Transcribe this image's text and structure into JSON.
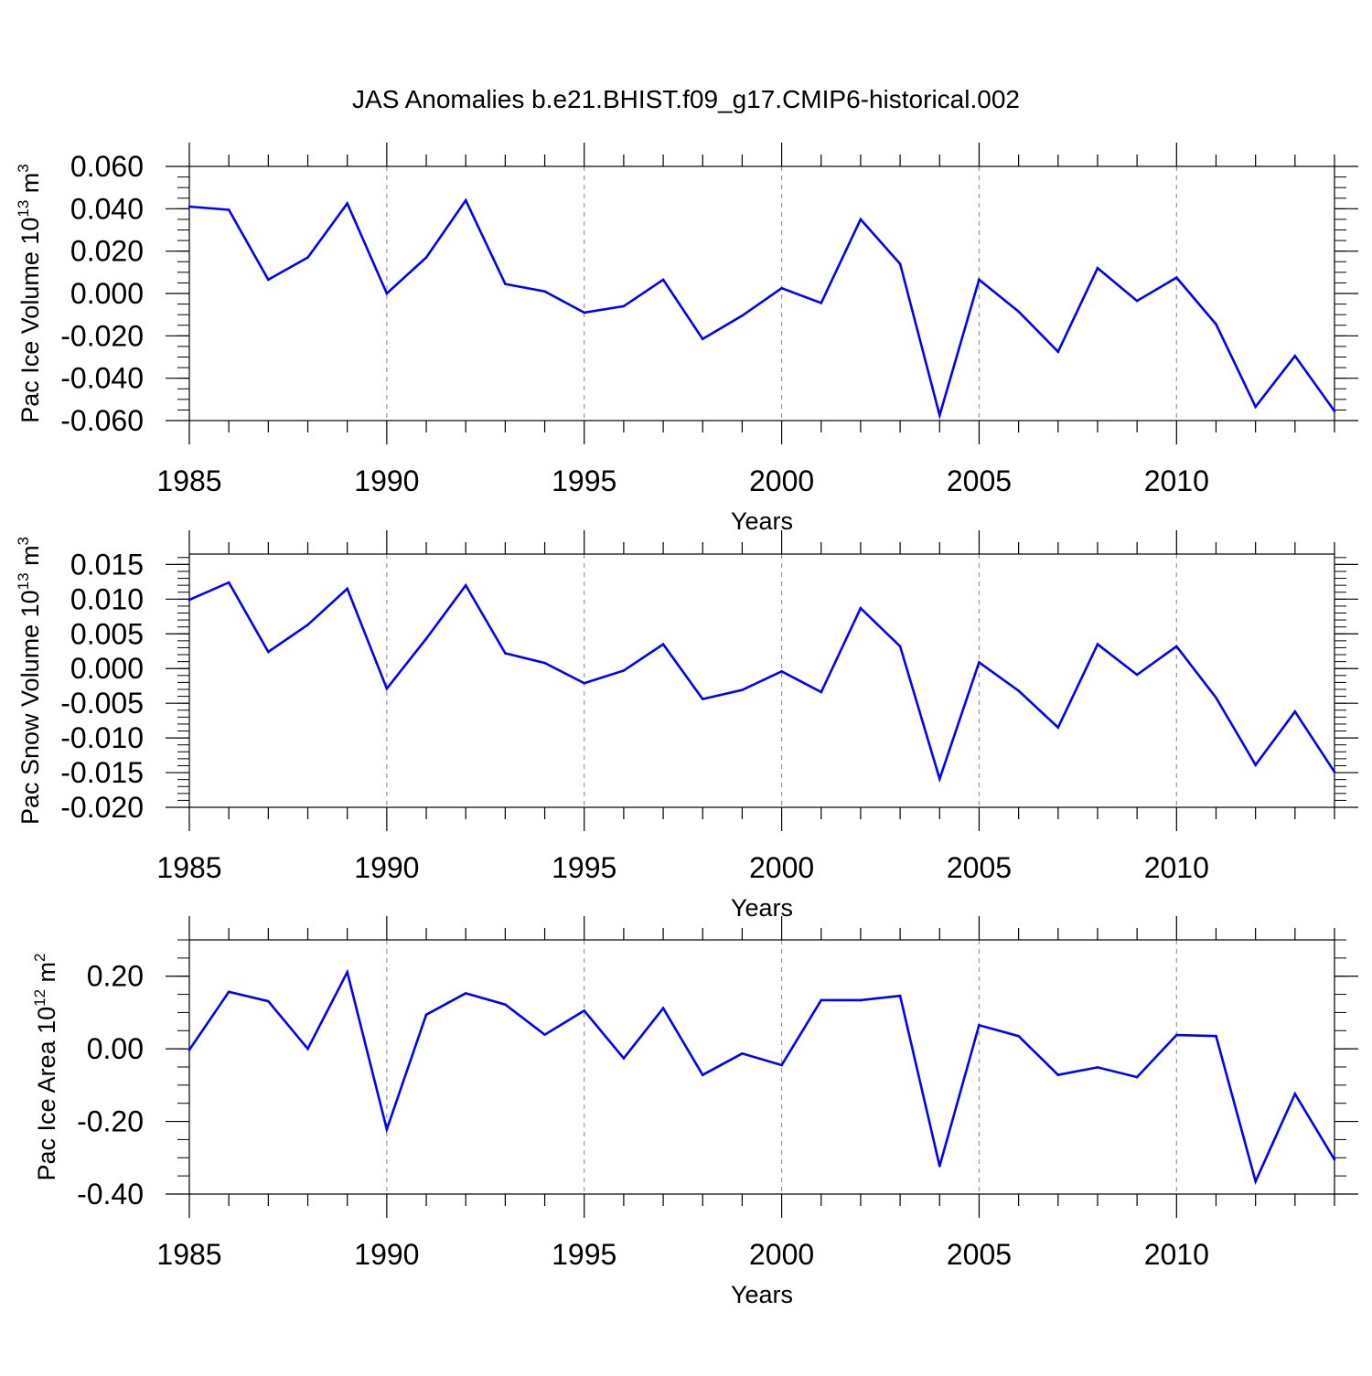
{
  "title": "JAS Anomalies b.e21.BHIST.f09_g17.CMIP6-historical.002",
  "line_color": "#0000ff",
  "chart_data": [
    {
      "type": "line",
      "ylabel": "Pac Ice Volume 10",
      "ylabel_exp": "13",
      "ylabel_unit": " m",
      "ylabel_unit_exp": "3",
      "xlabel": "Years",
      "xlim": [
        1985,
        2014
      ],
      "ylim": [
        -0.06,
        0.06
      ],
      "y_ticks": [
        -0.06,
        -0.04,
        -0.02,
        0.0,
        0.02,
        0.04,
        0.06
      ],
      "y_tick_labels": [
        "-0.060",
        "-0.040",
        "-0.020",
        "0.000",
        "0.020",
        "0.040",
        "0.060"
      ],
      "y_minor_step": 0.005,
      "x_ticks": [
        1985,
        1990,
        1995,
        2000,
        2005,
        2010
      ],
      "x_tick_labels": [
        "1985",
        "1990",
        "1995",
        "2000",
        "2005",
        "2010"
      ],
      "x_grid": [
        1990,
        1995,
        2000,
        2005,
        2010
      ],
      "x": [
        1985,
        1986,
        1987,
        1988,
        1989,
        1990,
        1991,
        1992,
        1993,
        1994,
        1995,
        1996,
        1997,
        1998,
        1999,
        2000,
        2001,
        2002,
        2003,
        2004,
        2005,
        2006,
        2007,
        2008,
        2009,
        2010,
        2011,
        2012,
        2013,
        2014
      ],
      "values": [
        0.041,
        0.0395,
        0.0065,
        0.017,
        0.0425,
        0.0,
        0.017,
        0.044,
        0.0045,
        0.001,
        -0.009,
        -0.006,
        0.0065,
        -0.0215,
        -0.0105,
        0.0025,
        -0.0045,
        0.035,
        0.014,
        -0.0575,
        0.0065,
        -0.0085,
        -0.0275,
        0.012,
        -0.0035,
        0.0075,
        -0.0145,
        -0.0535,
        -0.0295,
        -0.0555
      ]
    },
    {
      "type": "line",
      "ylabel": "Pac Snow Volume 10",
      "ylabel_exp": "13",
      "ylabel_unit": " m",
      "ylabel_unit_exp": "3",
      "xlabel": "Years",
      "xlim": [
        1985,
        2014
      ],
      "ylim": [
        -0.02,
        0.0165
      ],
      "y_ticks": [
        -0.02,
        -0.015,
        -0.01,
        -0.005,
        0.0,
        0.005,
        0.01,
        0.015
      ],
      "y_tick_labels": [
        "-0.020",
        "-0.015",
        "-0.010",
        "-0.005",
        "0.000",
        "0.005",
        "0.010",
        "0.015"
      ],
      "y_minor_step": 0.001,
      "x_ticks": [
        1985,
        1990,
        1995,
        2000,
        2005,
        2010
      ],
      "x_tick_labels": [
        "1985",
        "1990",
        "1995",
        "2000",
        "2005",
        "2010"
      ],
      "x_grid": [
        1990,
        1995,
        2000,
        2005,
        2010
      ],
      "x": [
        1985,
        1986,
        1987,
        1988,
        1989,
        1990,
        1991,
        1992,
        1993,
        1994,
        1995,
        1996,
        1997,
        1998,
        1999,
        2000,
        2001,
        2002,
        2003,
        2004,
        2005,
        2006,
        2007,
        2008,
        2009,
        2010,
        2011,
        2012,
        2013,
        2014
      ],
      "values": [
        0.0099,
        0.0124,
        0.0024,
        0.0063,
        0.0115,
        -0.0029,
        0.0043,
        0.012,
        0.0022,
        0.0008,
        -0.0021,
        -0.0003,
        0.0035,
        -0.0044,
        -0.0031,
        -0.0004,
        -0.0034,
        0.0087,
        0.0032,
        -0.0159,
        0.0009,
        -0.0032,
        -0.0085,
        0.0035,
        -0.0009,
        0.0032,
        -0.0042,
        -0.0139,
        -0.0062,
        -0.0149
      ]
    },
    {
      "type": "line",
      "ylabel": "Pac Ice Area 10",
      "ylabel_exp": "12",
      "ylabel_unit": " m",
      "ylabel_unit_exp": "2",
      "xlabel": "Years",
      "xlim": [
        1985,
        2014
      ],
      "ylim": [
        -0.4,
        0.3
      ],
      "y_ticks": [
        -0.4,
        -0.2,
        0.0,
        0.2
      ],
      "y_tick_labels": [
        "-0.40",
        "-0.20",
        "0.00",
        "0.20"
      ],
      "y_minor_step": 0.05,
      "x_ticks": [
        1985,
        1990,
        1995,
        2000,
        2005,
        2010
      ],
      "x_tick_labels": [
        "1985",
        "1990",
        "1995",
        "2000",
        "2005",
        "2010"
      ],
      "x_grid": [
        1990,
        1995,
        2000,
        2005,
        2010
      ],
      "x": [
        1985,
        1986,
        1987,
        1988,
        1989,
        1990,
        1991,
        1992,
        1993,
        1994,
        1995,
        1996,
        1997,
        1998,
        1999,
        2000,
        2001,
        2002,
        2003,
        2004,
        2005,
        2006,
        2007,
        2008,
        2009,
        2010,
        2011,
        2012,
        2013,
        2014
      ],
      "values": [
        -0.003,
        0.157,
        0.131,
        0.0,
        0.211,
        -0.222,
        0.094,
        0.153,
        0.122,
        0.039,
        0.105,
        -0.026,
        0.112,
        -0.072,
        -0.013,
        -0.045,
        0.134,
        0.134,
        0.146,
        -0.323,
        0.065,
        0.035,
        -0.072,
        -0.051,
        -0.078,
        0.038,
        0.035,
        -0.365,
        -0.124,
        -0.305
      ]
    }
  ]
}
